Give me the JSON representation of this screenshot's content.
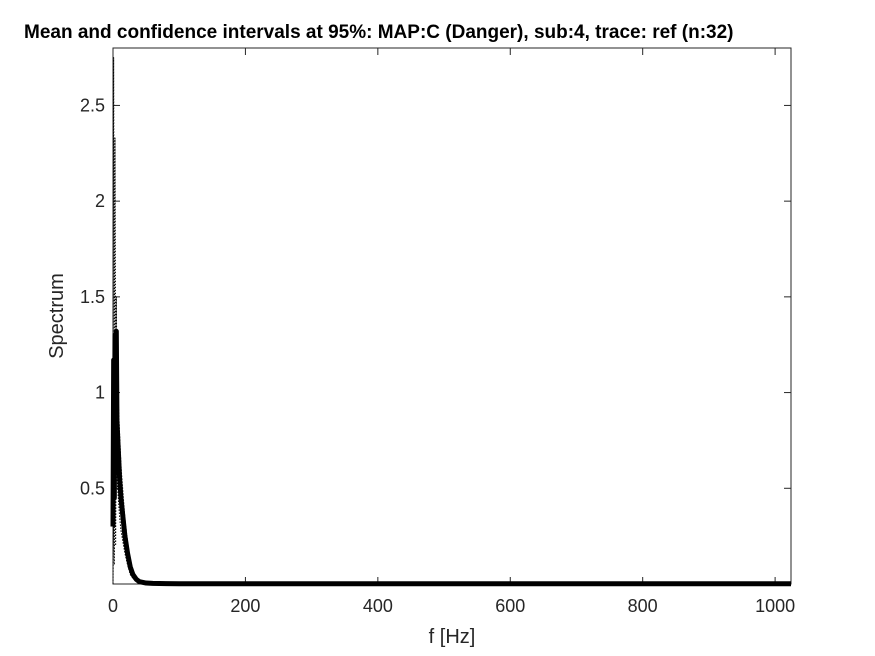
{
  "chart_data": {
    "type": "line",
    "title": "Mean and confidence intervals at 95%: MAP:C (Danger), sub:4, trace: ref (n:32)",
    "xlabel": "f [Hz]",
    "ylabel": "Spectrum",
    "xlim": [
      0,
      1024
    ],
    "ylim": [
      0,
      2.8
    ],
    "xticks": [
      0,
      200,
      400,
      600,
      800,
      1000
    ],
    "xtick_labels": [
      "0",
      "200",
      "400",
      "600",
      "800",
      "1000"
    ],
    "yticks": [
      0.5,
      1,
      1.5,
      2,
      2.5
    ],
    "ytick_labels": [
      "0.5",
      "1",
      "1.5",
      "2",
      "2.5"
    ],
    "grid": false,
    "series": [
      {
        "role": "mean",
        "color": "#000000",
        "x": [
          0,
          1,
          2,
          3,
          4,
          5,
          6,
          8,
          10,
          12,
          15,
          18,
          22,
          26,
          30,
          35,
          40,
          50,
          60,
          80,
          100,
          200,
          400,
          600,
          800,
          1024
        ],
        "y": [
          0.3,
          1.17,
          0.45,
          1.3,
          0.6,
          1.32,
          0.85,
          0.7,
          0.55,
          0.45,
          0.35,
          0.25,
          0.16,
          0.09,
          0.05,
          0.025,
          0.012,
          0.005,
          0.003,
          0.002,
          0.001,
          0.001,
          0.001,
          0.001,
          0.001,
          0.001
        ]
      },
      {
        "role": "upper-ci",
        "color": "#000000",
        "x": [
          0,
          1,
          2,
          3,
          4,
          5,
          6,
          8,
          10,
          12,
          15,
          18,
          22,
          26,
          30,
          35,
          40,
          50,
          60,
          80,
          100,
          200,
          400,
          600,
          800,
          1024
        ],
        "y": [
          0.8,
          2.75,
          1.2,
          2.33,
          1.1,
          1.5,
          1.1,
          0.95,
          0.78,
          0.62,
          0.48,
          0.34,
          0.22,
          0.13,
          0.07,
          0.035,
          0.018,
          0.008,
          0.004,
          0.003,
          0.002,
          0.002,
          0.002,
          0.002,
          0.002,
          0.002
        ]
      },
      {
        "role": "lower-ci",
        "color": "#000000",
        "x": [
          0,
          1,
          2,
          3,
          4,
          5,
          6,
          8,
          10,
          12,
          15,
          18,
          22,
          26,
          30,
          35,
          40,
          50,
          60,
          80,
          100,
          200,
          400,
          600,
          800,
          1024
        ],
        "y": [
          0.0,
          0.4,
          0.1,
          0.55,
          0.2,
          0.9,
          0.55,
          0.45,
          0.35,
          0.28,
          0.22,
          0.16,
          0.1,
          0.05,
          0.03,
          0.015,
          0.007,
          0.003,
          0.001,
          0.0,
          0.0,
          0.0,
          0.0,
          0.0,
          0.0,
          0.0
        ]
      }
    ]
  }
}
